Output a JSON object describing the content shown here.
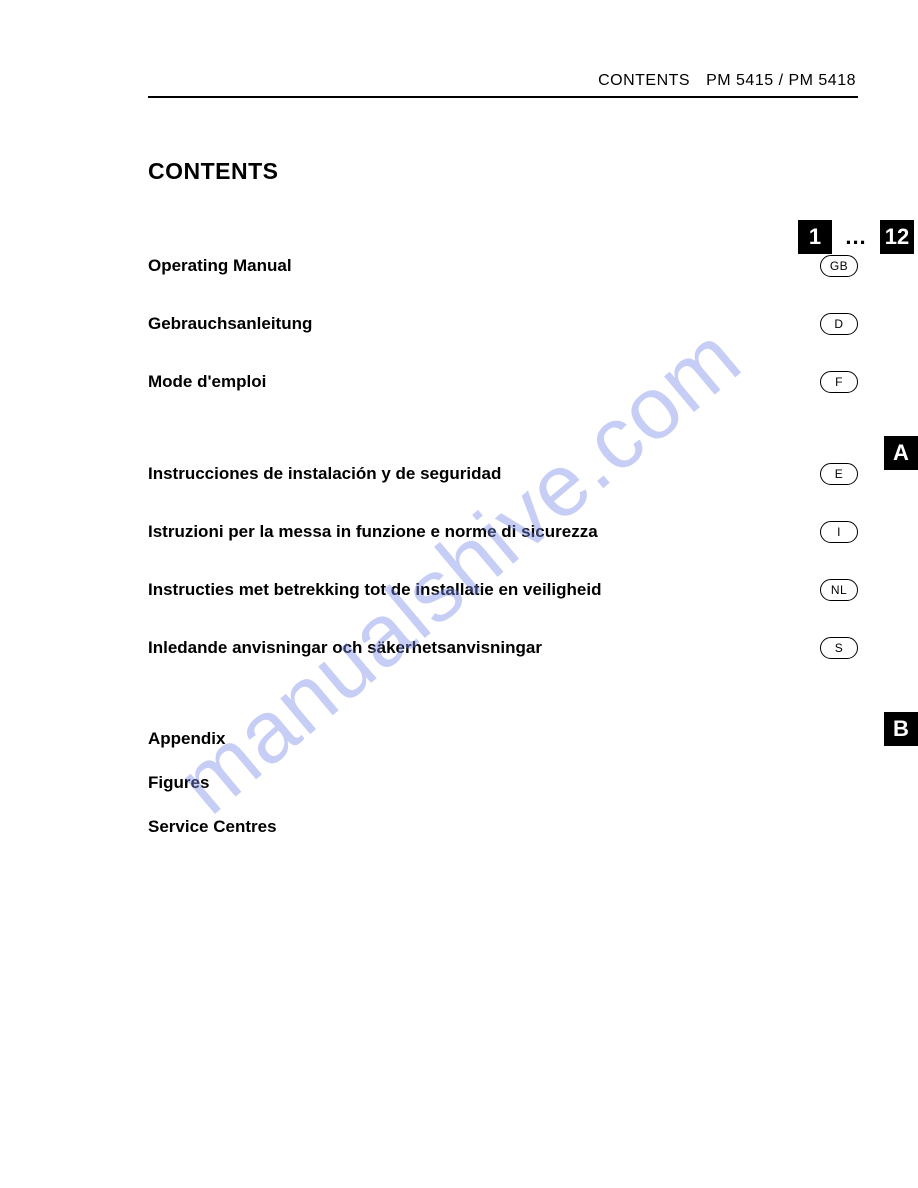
{
  "header": {
    "label": "CONTENTS",
    "model": "PM 5415 / PM 5418"
  },
  "title": "CONTENTS",
  "section1": [
    {
      "label": "Operating Manual",
      "lang": "GB"
    },
    {
      "label": "Gebrauchsanleitung",
      "lang": "D"
    },
    {
      "label": "Mode d'emploi",
      "lang": "F"
    }
  ],
  "section2": [
    {
      "label": "Instrucciones de instalación y de seguridad",
      "lang": "E"
    },
    {
      "label": "Istruzioni per la messa in funzione e norme di sicurezza",
      "lang": "I"
    },
    {
      "label": "Instructies met betrekking tot de installatie en veiligheid",
      "lang": "NL"
    },
    {
      "label": "Inledande anvisningar och säkerhetsanvisningar",
      "lang": "S"
    }
  ],
  "section3": [
    "Appendix",
    "Figures",
    "Service Centres"
  ],
  "tabs": {
    "pages_from": "1",
    "ellipsis": "...",
    "pages_to": "12",
    "A": "A",
    "B": "B"
  },
  "watermark": "manualshive.com"
}
